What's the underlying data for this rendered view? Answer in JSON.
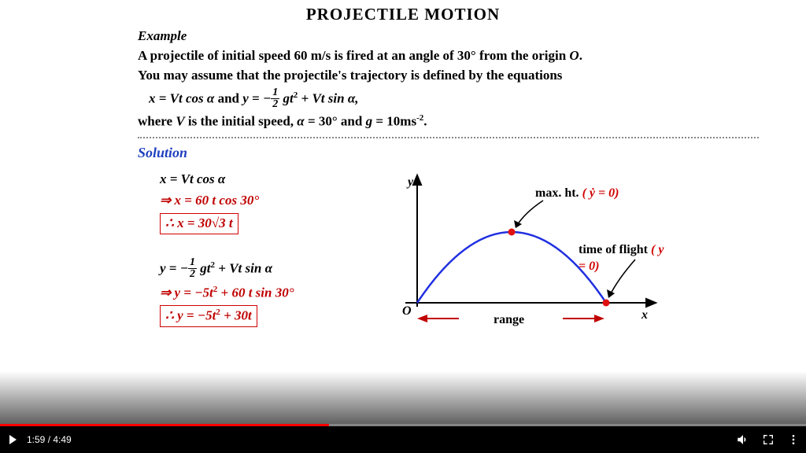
{
  "title": "PROJECTILE  MOTION",
  "example_label": "Example",
  "problem_l1": "A projectile of initial speed 60 m/s is fired at an angle of 30° from the origin ",
  "problem_O": "O",
  "problem_l1b": ".",
  "problem_l2": "You may assume that the projectile's trajectory is defined by the equations",
  "eq_x": "x = Vt cos α",
  "eq_and": "  and   ",
  "eq_y_pre": "y = −",
  "eq_y_post": " gt",
  "eq_y_tail": " + Vt sin α,",
  "where_l": "where V is the initial speed, α = 30° and g = 10ms",
  "where_exp": "-2",
  "where_dot": ".",
  "solution_label": "Solution",
  "m1": "x = Vt cos α",
  "m2": "⇒ x = 60 t cos 30°",
  "m3_pre": "∴  x = 30√3 t",
  "m4_pre": "y = −",
  "m4_mid": " gt",
  "m4_post": " + Vt sin α",
  "m5": "⇒ y = −5t",
  "m5_b": " + 60 t sin 30°",
  "m6": "∴  y = −5t",
  "m6_b": " + 30t",
  "diag": {
    "y": "y",
    "x": "x",
    "O": "O",
    "range": "range",
    "maxht": "max. ht. ",
    "maxht_eq": "( ẏ = 0)",
    "tof": "time of flight ",
    "tof_eq": "( y = 0)",
    "curve_color": "#2030e0",
    "axis_color": "#000000",
    "dot_color": "#e01010",
    "arrow_color": "#000000",
    "range_color": "#c00000"
  },
  "video": {
    "current": "1:59",
    "total": "4:49",
    "progress_pct": 40.8
  }
}
